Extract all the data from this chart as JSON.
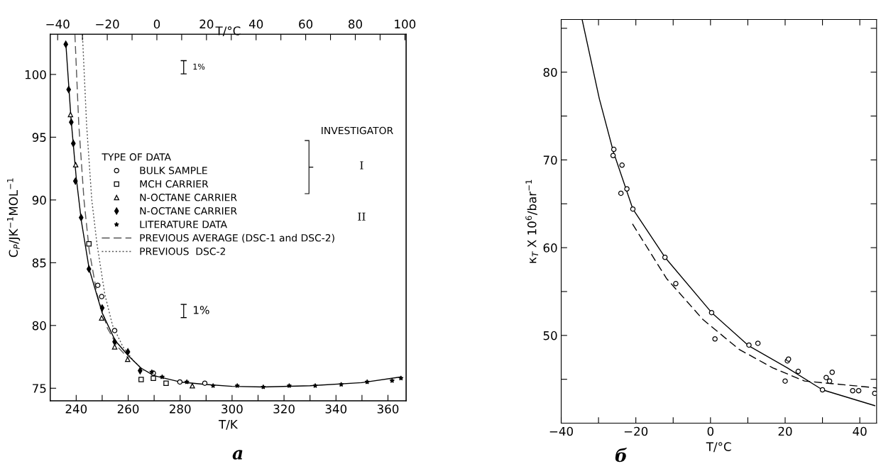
{
  "chart_data": [
    {
      "type": "scatter",
      "xlabel": "T/K",
      "x2label": "T/°C",
      "ylabel": "C$_{P}$/JK$^{−1}$MOL$^{−1}$",
      "legend_title": "TYPE OF DATA",
      "legend": "right",
      "xlim": [
        230,
        367
      ],
      "xticks": [
        240,
        {
          "value": 250,
          "label": null
        },
        260,
        {
          "value": 270,
          "label": null
        },
        280,
        {
          "value": 290,
          "label": null
        },
        300,
        {
          "value": 310,
          "label": null
        },
        320,
        {
          "value": 330,
          "label": null
        },
        340,
        {
          "value": 350,
          "label": null
        },
        360
      ],
      "x2lim": [
        -43,
        100.5
      ],
      "x2ticks": [
        -40,
        {
          "value": -30,
          "label": null
        },
        -20,
        {
          "value": -10,
          "label": null
        },
        0,
        {
          "value": 10,
          "label": null
        },
        20,
        {
          "value": 30,
          "label": null
        },
        40,
        {
          "value": 50,
          "label": null
        },
        60,
        {
          "value": 70,
          "label": null
        },
        80,
        {
          "value": 90,
          "label": null
        },
        100
      ],
      "ylim": [
        74,
        103.2
      ],
      "yticks": [
        75,
        80,
        85,
        90,
        95,
        100
      ],
      "annotations": [
        "1%",
        "1%",
        "INVESTIGATOR",
        "I",
        "II",
        "a"
      ],
      "series": [
        {
          "name": "BULK SAMPLE",
          "type": "scatter",
          "marker": "circle",
          "color": "#000000",
          "x": [
            248.3,
            249.8,
            254.8,
            269.7,
            279.9,
            289.5
          ],
          "values": [
            83.2,
            82.3,
            79.6,
            76.2,
            75.5,
            75.4
          ]
        },
        {
          "name": "MCH CARRIER",
          "type": "scatter",
          "marker": "square",
          "color": "#000000",
          "x": [
            244.9,
            265,
            269.7,
            274.6
          ],
          "values": [
            86.5,
            75.7,
            75.8,
            75.4
          ]
        },
        {
          "name": "N-OCTANE CARRIER",
          "type": "scatter",
          "marker": "triangle",
          "color": "#000000",
          "x": [
            237.8,
            239.8,
            249.8,
            254.8,
            259.8,
            284.7
          ],
          "values": [
            96.8,
            92.8,
            80.6,
            78.3,
            77.3,
            75.2
          ]
        },
        {
          "name": "N-OCTANE CARRIER",
          "type": "scatter",
          "marker": "diamond",
          "color": "#000000",
          "x": [
            236,
            237.1,
            238.1,
            238.9,
            239.7,
            241.9,
            244.9,
            250,
            254.8,
            259.9,
            264.6
          ],
          "values": [
            102.4,
            98.8,
            96.2,
            94.5,
            91.5,
            88.6,
            84.5,
            81.4,
            78.7,
            77.9,
            76.4
          ]
        },
        {
          "name": "LITERATURE DATA",
          "type": "scatter",
          "marker": "star",
          "color": "#000000",
          "x": [
            269.1,
            273.1,
            282.6,
            292.7,
            302,
            312,
            322,
            332,
            342,
            352,
            361.6,
            365
          ],
          "values": [
            76.3,
            75.9,
            75.5,
            75.2,
            75.2,
            75.1,
            75.2,
            75.2,
            75.3,
            75.5,
            75.6,
            75.8
          ]
        },
        {
          "name": "PREVIOUS AVERAGE (DSC-1 and DSC-2)",
          "type": "line",
          "line_style": "dashed",
          "color": "#555555",
          "x": [
            239.5,
            241,
            243,
            245,
            248,
            252,
            256,
            260
          ],
          "values": [
            103.2,
            96,
            90,
            86,
            82.5,
            79.8,
            78.3,
            77.4
          ]
        },
        {
          "name": "PREVIOUS  DSC-2",
          "type": "line",
          "line_style": "dotted",
          "color": "#555555",
          "x": [
            242.4,
            244,
            246,
            248,
            251,
            254,
            258,
            262,
            266
          ],
          "values": [
            103.2,
            96,
            90,
            86.5,
            82.5,
            80,
            78.3,
            77.2,
            76.4
          ]
        },
        {
          "type": "line",
          "line_style": "solid",
          "color": "#000000",
          "x": [
            236,
            238,
            240,
            242,
            245,
            250,
            255,
            260,
            265,
            270,
            280,
            290,
            300,
            312,
            330,
            350,
            365
          ],
          "values": [
            102.5,
            96.5,
            91.8,
            88.3,
            84.5,
            81,
            78.8,
            77.6,
            76.6,
            76,
            75.5,
            75.3,
            75.15,
            75.1,
            75.2,
            75.45,
            75.9
          ]
        }
      ]
    },
    {
      "type": "scatter",
      "xlabel": "T/°C",
      "ylabel": "κ$_{T}$ X 10$^{6}$/bar$^{−1}$",
      "xlim": [
        -40,
        44.5
      ],
      "xticks": [
        -40,
        {
          "value": -30,
          "label": null
        },
        -20,
        {
          "value": -10,
          "label": null
        },
        0,
        {
          "value": 10,
          "label": null
        },
        20,
        {
          "value": 30,
          "label": null
        },
        40
      ],
      "ylim": [
        40,
        86
      ],
      "yticks": [
        {
          "value": 45,
          "label": null
        },
        50,
        {
          "value": 55,
          "label": null
        },
        60,
        {
          "value": 65,
          "label": null
        },
        70,
        {
          "value": 75,
          "label": null
        },
        80,
        {
          "value": 85,
          "label": null
        }
      ],
      "annotations": [
        "б"
      ],
      "series": [
        {
          "type": "scatter",
          "marker": "circle",
          "color": "#000000",
          "x": [
            -25.9,
            -26.1,
            -23.7,
            -22.4,
            -24,
            -20.8,
            -12.2,
            -9.3,
            0.3,
            1.2,
            10.3,
            12.7,
            20.6,
            20.9,
            23.5,
            20,
            30,
            31,
            32.6,
            31.9,
            38.1,
            39.7,
            44
          ],
          "values": [
            71.2,
            70.5,
            69.4,
            66.7,
            66.2,
            64.4,
            58.9,
            55.9,
            52.6,
            49.6,
            48.9,
            49.1,
            47.1,
            47.3,
            45.9,
            44.8,
            43.8,
            45.2,
            45.8,
            44.8,
            43.7,
            43.7,
            43.4
          ]
        },
        {
          "type": "line",
          "line_style": "solid",
          "color": "#000000",
          "x": [
            -34.4,
            -29.8,
            -26,
            -20.8,
            -12.2,
            0.3,
            10.3,
            20.6,
            30,
            44
          ],
          "values": [
            86,
            77,
            70.9,
            64.4,
            58.9,
            52.6,
            48.8,
            46.3,
            43.8,
            42
          ]
        },
        {
          "type": "line",
          "line_style": "dashed",
          "color": "#000000",
          "x": [
            -20.9,
            -11.8,
            -2,
            7.7,
            16.7,
            25.2,
            42.6,
            44.5
          ],
          "values": [
            62.7,
            56.5,
            51.8,
            48.4,
            46.3,
            44.8,
            44.1,
            44.0
          ]
        }
      ]
    }
  ]
}
